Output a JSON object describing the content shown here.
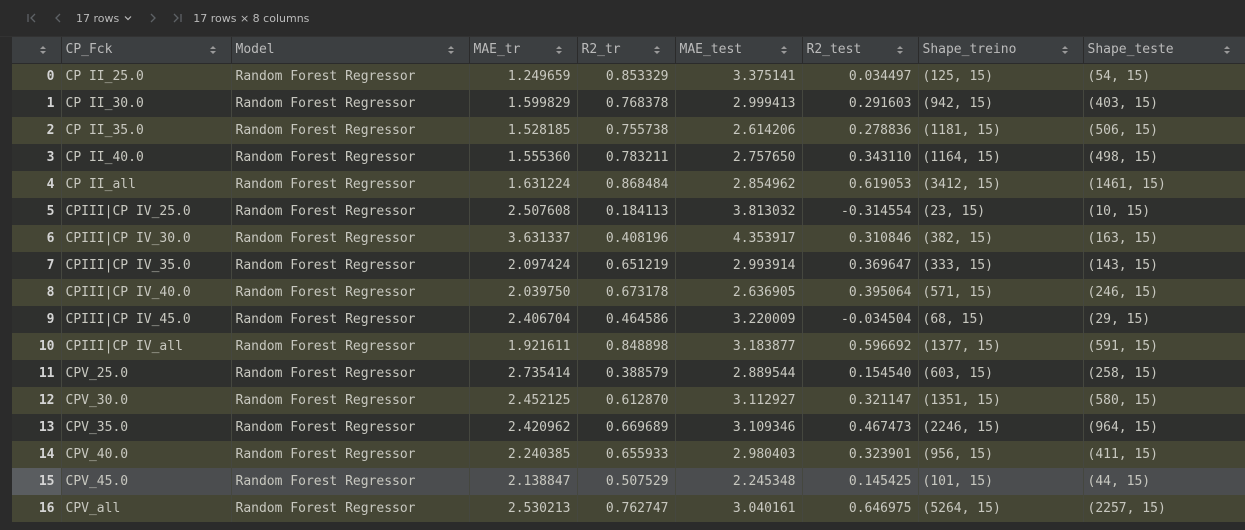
{
  "toolbar": {
    "rows_label": "17 rows",
    "summary": "17 rows × 8 columns"
  },
  "columns": [
    "",
    "CP_Fck",
    "Model",
    "MAE_tr",
    "R2_tr",
    "MAE_test",
    "R2_test",
    "Shape_treino",
    "Shape_teste"
  ],
  "rows": [
    [
      "0",
      "CP II_25.0",
      "Random Forest Regressor",
      "1.249659",
      "0.853329",
      "3.375141",
      "0.034497",
      "(125, 15)",
      "(54, 15)"
    ],
    [
      "1",
      "CP II_30.0",
      "Random Forest Regressor",
      "1.599829",
      "0.768378",
      "2.999413",
      "0.291603",
      "(942, 15)",
      "(403, 15)"
    ],
    [
      "2",
      "CP II_35.0",
      "Random Forest Regressor",
      "1.528185",
      "0.755738",
      "2.614206",
      "0.278836",
      "(1181, 15)",
      "(506, 15)"
    ],
    [
      "3",
      "CP II_40.0",
      "Random Forest Regressor",
      "1.555360",
      "0.783211",
      "2.757650",
      "0.343110",
      "(1164, 15)",
      "(498, 15)"
    ],
    [
      "4",
      "CP II_all",
      "Random Forest Regressor",
      "1.631224",
      "0.868484",
      "2.854962",
      "0.619053",
      "(3412, 15)",
      "(1461, 15)"
    ],
    [
      "5",
      "CPIII|CP IV_25.0",
      "Random Forest Regressor",
      "2.507608",
      "0.184113",
      "3.813032",
      "-0.314554",
      "(23, 15)",
      "(10, 15)"
    ],
    [
      "6",
      "CPIII|CP IV_30.0",
      "Random Forest Regressor",
      "3.631337",
      "0.408196",
      "4.353917",
      "0.310846",
      "(382, 15)",
      "(163, 15)"
    ],
    [
      "7",
      "CPIII|CP IV_35.0",
      "Random Forest Regressor",
      "2.097424",
      "0.651219",
      "2.993914",
      "0.369647",
      "(333, 15)",
      "(143, 15)"
    ],
    [
      "8",
      "CPIII|CP IV_40.0",
      "Random Forest Regressor",
      "2.039750",
      "0.673178",
      "2.636905",
      "0.395064",
      "(571, 15)",
      "(246, 15)"
    ],
    [
      "9",
      "CPIII|CP IV_45.0",
      "Random Forest Regressor",
      "2.406704",
      "0.464586",
      "3.220009",
      "-0.034504",
      "(68, 15)",
      "(29, 15)"
    ],
    [
      "10",
      "CPIII|CP IV_all",
      "Random Forest Regressor",
      "1.921611",
      "0.848898",
      "3.183877",
      "0.596692",
      "(1377, 15)",
      "(591, 15)"
    ],
    [
      "11",
      "CPV_25.0",
      "Random Forest Regressor",
      "2.735414",
      "0.388579",
      "2.889544",
      "0.154540",
      "(603, 15)",
      "(258, 15)"
    ],
    [
      "12",
      "CPV_30.0",
      "Random Forest Regressor",
      "2.452125",
      "0.612870",
      "3.112927",
      "0.321147",
      "(1351, 15)",
      "(580, 15)"
    ],
    [
      "13",
      "CPV_35.0",
      "Random Forest Regressor",
      "2.420962",
      "0.669689",
      "3.109346",
      "0.467473",
      "(2246, 15)",
      "(964, 15)"
    ],
    [
      "14",
      "CPV_40.0",
      "Random Forest Regressor",
      "2.240385",
      "0.655933",
      "2.980403",
      "0.323901",
      "(956, 15)",
      "(411, 15)"
    ],
    [
      "15",
      "CPV_45.0",
      "Random Forest Regressor",
      "2.138847",
      "0.507529",
      "2.245348",
      "0.145425",
      "(101, 15)",
      "(44, 15)"
    ],
    [
      "16",
      "CPV_all",
      "Random Forest Regressor",
      "2.530213",
      "0.762747",
      "3.040161",
      "0.646975",
      "(5264, 15)",
      "(2257, 15)"
    ]
  ],
  "selected_row": 15,
  "colors": {
    "background": "#2b2b2b",
    "header": "#3c3f41",
    "row_even": "#454635",
    "row_odd": "#2f302e",
    "row_selected": "#4b4d4f"
  }
}
